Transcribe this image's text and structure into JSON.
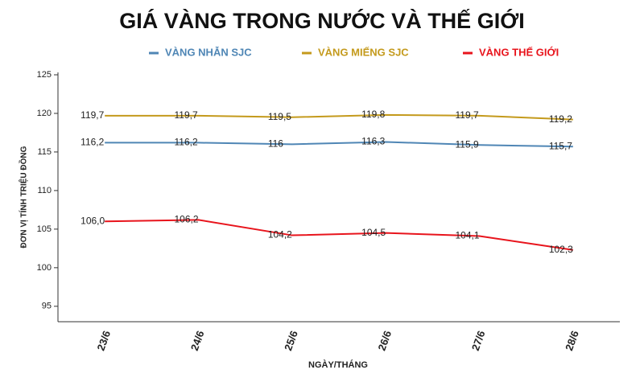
{
  "chart_data": {
    "type": "line",
    "title": "GIÁ VÀNG TRONG NƯỚC VÀ THẾ GIỚI",
    "y_label": "ĐƠN VỊ TÍNH TRIỆU ĐỒNG",
    "x_label": "NGÀY/THÁNG",
    "categories": [
      "23/6",
      "24/6",
      "25/6",
      "26/6",
      "27/6",
      "28/6"
    ],
    "series": [
      {
        "name": "VÀNG NHẪN SJC",
        "color": "#4f86b5",
        "values": [
          116.2,
          116.2,
          116,
          116.3,
          115.9,
          115.7
        ],
        "value_labels": [
          "116,2",
          "116,2",
          "116",
          "116,3",
          "115,9",
          "115,7"
        ]
      },
      {
        "name": "VÀNG MIẾNG SJC",
        "color": "#c49a1c",
        "values": [
          119.7,
          119.7,
          119.5,
          119.8,
          119.7,
          119.2
        ],
        "value_labels": [
          "119,7",
          "119,7",
          "119,5",
          "119,8",
          "119,7",
          "119,2"
        ]
      },
      {
        "name": "VÀNG THẾ GIỚI",
        "color": "#e8141c",
        "values": [
          106.0,
          106.2,
          104.2,
          104.5,
          104.1,
          102.3
        ],
        "value_labels": [
          "106,0",
          "106,2",
          "104,2",
          "104,5",
          "104,1",
          "102,3"
        ]
      }
    ],
    "ylim": [
      93,
      125
    ],
    "yticks": [
      95,
      100,
      105,
      110,
      115,
      120,
      125
    ],
    "grid": false,
    "legend": "top"
  }
}
